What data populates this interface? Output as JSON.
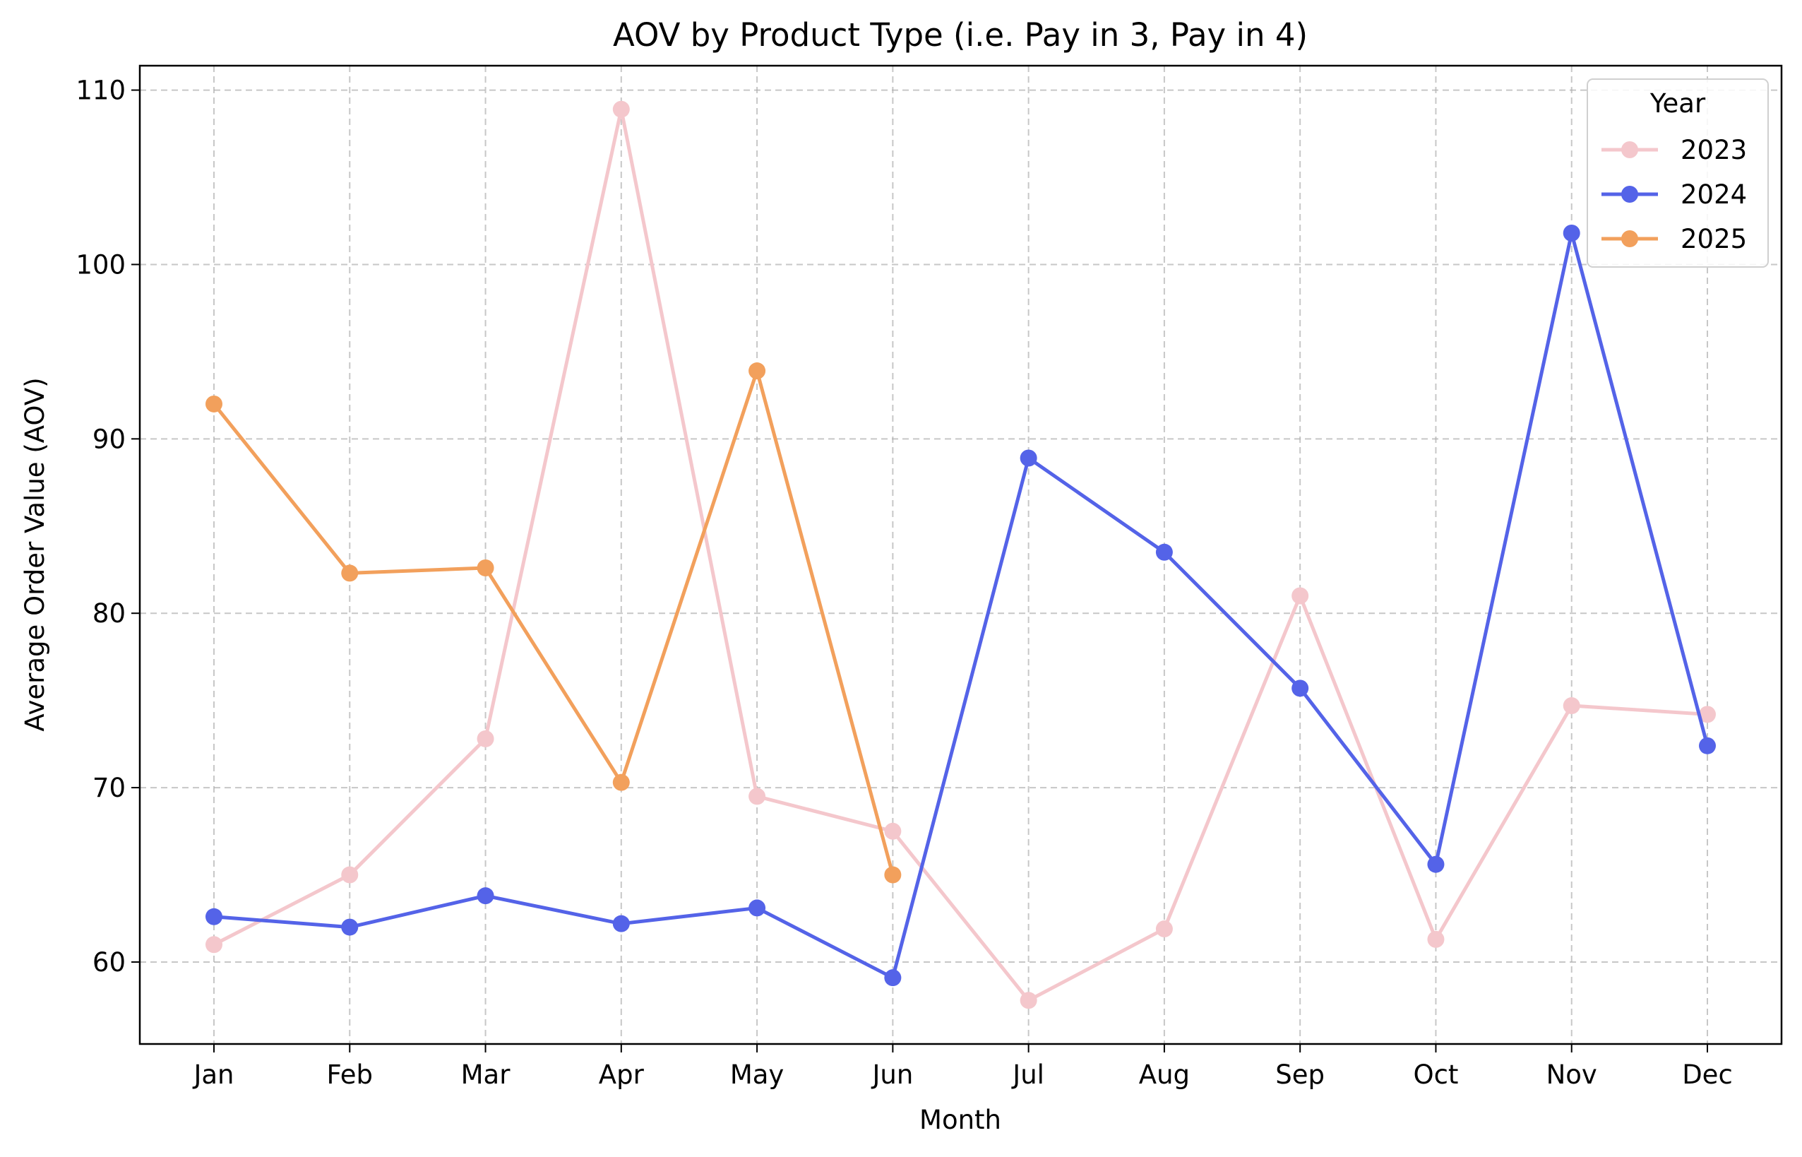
{
  "chart_data": {
    "type": "line",
    "title": "AOV by Product Type (i.e. Pay in 3, Pay in 4)",
    "xlabel": "Month",
    "ylabel": "Average Order Value (AOV)",
    "categories": [
      "Jan",
      "Feb",
      "Mar",
      "Apr",
      "May",
      "Jun",
      "Jul",
      "Aug",
      "Sep",
      "Oct",
      "Nov",
      "Dec"
    ],
    "yticks": [
      60,
      70,
      80,
      90,
      100,
      110
    ],
    "ylim": [
      55.3,
      111.4
    ],
    "grid": true,
    "legend": {
      "title": "Year",
      "placement": "top-right"
    },
    "series": [
      {
        "name": "2023",
        "color": "#f4c7cc",
        "values": [
          61.0,
          65.0,
          72.8,
          108.9,
          69.5,
          67.5,
          57.8,
          61.9,
          81.0,
          61.3,
          74.7,
          74.2
        ]
      },
      {
        "name": "2024",
        "color": "#5463e8",
        "values": [
          62.6,
          62.0,
          63.8,
          62.2,
          63.1,
          59.1,
          88.9,
          83.5,
          75.7,
          65.6,
          101.8,
          72.4
        ]
      },
      {
        "name": "2025",
        "color": "#f2a05c",
        "values": [
          92.0,
          82.3,
          82.6,
          70.3,
          93.9,
          65.0,
          null,
          null,
          null,
          null,
          null,
          null
        ]
      }
    ]
  }
}
